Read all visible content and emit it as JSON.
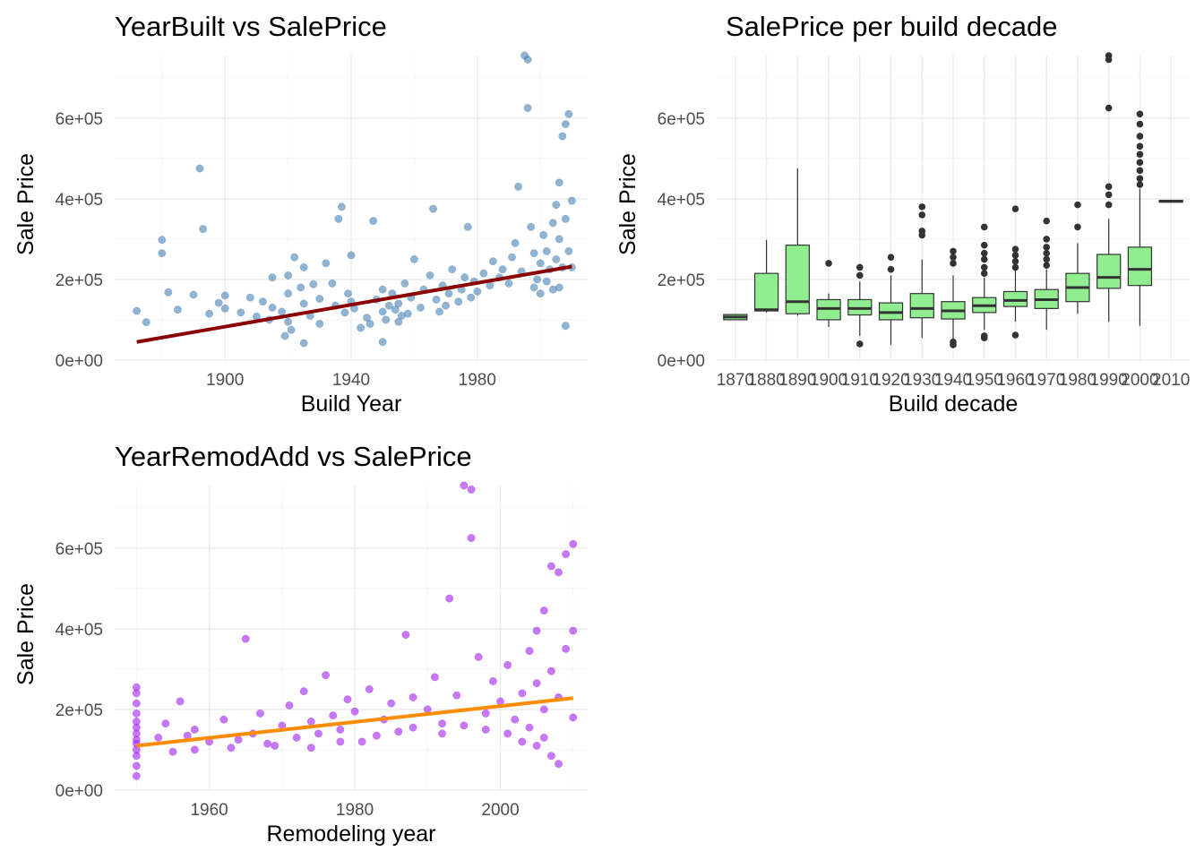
{
  "chart_data": [
    {
      "type": "scatter",
      "title": "YearBuilt vs SalePrice",
      "xlabel": "Build Year",
      "ylabel": "Sale Price",
      "xlim": [
        1865,
        2015
      ],
      "ylim": [
        0,
        755000
      ],
      "x_ticks": [
        1900,
        1940,
        1980
      ],
      "x_tick_labels": [
        "1900",
        "1940",
        "1980"
      ],
      "y_ticks": [
        0,
        200000,
        400000,
        600000
      ],
      "y_tick_labels": [
        "0e+00",
        "2e+05",
        "4e+05",
        "6e+05"
      ],
      "grid": true,
      "point_color": "#4682b4",
      "line_color": "#8b0000",
      "trend_line": {
        "x": [
          1872,
          2010
        ],
        "y": [
          45000,
          232000
        ]
      },
      "points": [
        [
          1872,
          122000
        ],
        [
          1875,
          94000
        ],
        [
          1880,
          298000
        ],
        [
          1880,
          265000
        ],
        [
          1882,
          168000
        ],
        [
          1885,
          125000
        ],
        [
          1890,
          162000
        ],
        [
          1892,
          475000
        ],
        [
          1893,
          325000
        ],
        [
          1895,
          115000
        ],
        [
          1898,
          142000
        ],
        [
          1900,
          128000
        ],
        [
          1900,
          160000
        ],
        [
          1905,
          118000
        ],
        [
          1908,
          155000
        ],
        [
          1910,
          108000
        ],
        [
          1912,
          145000
        ],
        [
          1915,
          205000
        ],
        [
          1915,
          130000
        ],
        [
          1918,
          120000
        ],
        [
          1920,
          165000
        ],
        [
          1920,
          210000
        ],
        [
          1920,
          95000
        ],
        [
          1922,
          255000
        ],
        [
          1924,
          180000
        ],
        [
          1925,
          140000
        ],
        [
          1925,
          230000
        ],
        [
          1927,
          110000
        ],
        [
          1928,
          188000
        ],
        [
          1930,
          152000
        ],
        [
          1930,
          90000
        ],
        [
          1932,
          240000
        ],
        [
          1934,
          190000
        ],
        [
          1935,
          135000
        ],
        [
          1936,
          350000
        ],
        [
          1937,
          380000
        ],
        [
          1938,
          118000
        ],
        [
          1939,
          165000
        ],
        [
          1940,
          260000
        ],
        [
          1940,
          145000
        ],
        [
          1941,
          128000
        ],
        [
          1945,
          105000
        ],
        [
          1947,
          345000
        ],
        [
          1948,
          150000
        ],
        [
          1950,
          175000
        ],
        [
          1950,
          120000
        ],
        [
          1952,
          135000
        ],
        [
          1953,
          165000
        ],
        [
          1955,
          95000
        ],
        [
          1955,
          140000
        ],
        [
          1957,
          190000
        ],
        [
          1959,
          155000
        ],
        [
          1960,
          250000
        ],
        [
          1962,
          130000
        ],
        [
          1963,
          175000
        ],
        [
          1965,
          210000
        ],
        [
          1966,
          375000
        ],
        [
          1967,
          150000
        ],
        [
          1969,
          185000
        ],
        [
          1970,
          135000
        ],
        [
          1971,
          165000
        ],
        [
          1972,
          225000
        ],
        [
          1974,
          145000
        ],
        [
          1975,
          175000
        ],
        [
          1976,
          205000
        ],
        [
          1977,
          330000
        ],
        [
          1978,
          155000
        ],
        [
          1979,
          195000
        ],
        [
          1980,
          170000
        ],
        [
          1982,
          215000
        ],
        [
          1984,
          185000
        ],
        [
          1985,
          245000
        ],
        [
          1987,
          205000
        ],
        [
          1988,
          225000
        ],
        [
          1990,
          190000
        ],
        [
          1991,
          255000
        ],
        [
          1992,
          290000
        ],
        [
          1993,
          430000
        ],
        [
          1994,
          220000
        ],
        [
          1995,
          755000
        ],
        [
          1996,
          745000
        ],
        [
          1996,
          625000
        ],
        [
          1997,
          330000
        ],
        [
          1998,
          265000
        ],
        [
          1999,
          200000
        ],
        [
          2000,
          240000
        ],
        [
          2001,
          310000
        ],
        [
          2002,
          270000
        ],
        [
          2003,
          225000
        ],
        [
          2004,
          340000
        ],
        [
          2005,
          385000
        ],
        [
          2005,
          250000
        ],
        [
          2006,
          440000
        ],
        [
          2006,
          300000
        ],
        [
          2007,
          555000
        ],
        [
          2007,
          230000
        ],
        [
          2008,
          585000
        ],
        [
          2008,
          350000
        ],
        [
          2009,
          610000
        ],
        [
          2009,
          270000
        ],
        [
          2010,
          395000
        ],
        [
          2010,
          230000
        ],
        [
          2006,
          180000
        ],
        [
          2004,
          175000
        ],
        [
          2002,
          195000
        ],
        [
          2000,
          165000
        ],
        [
          1998,
          180000
        ],
        [
          1968,
          120000
        ],
        [
          1958,
          115000
        ],
        [
          1956,
          110000
        ],
        [
          1954,
          125000
        ],
        [
          1951,
          100000
        ],
        [
          1946,
          90000
        ],
        [
          1943,
          80000
        ],
        [
          1921,
          75000
        ],
        [
          1919,
          60000
        ],
        [
          1914,
          100000
        ],
        [
          1950,
          45000
        ],
        [
          1925,
          42000
        ],
        [
          2008,
          85000
        ]
      ]
    },
    {
      "type": "box",
      "title": "SalePrice per build decade",
      "xlabel": "Build decade",
      "ylabel": "Sale Price",
      "ylim": [
        0,
        755000
      ],
      "y_ticks": [
        0,
        200000,
        400000,
        600000
      ],
      "y_tick_labels": [
        "0e+00",
        "2e+05",
        "4e+05",
        "6e+05"
      ],
      "grid": true,
      "box_color": "#90ee90",
      "categories": [
        "1870",
        "1880",
        "1890",
        "1900",
        "1910",
        "1920",
        "1930",
        "1940",
        "1950",
        "1960",
        "1970",
        "1980",
        "1990",
        "2000",
        "2010"
      ],
      "boxes": [
        {
          "min": 100000,
          "q1": 100000,
          "median": 107000,
          "q3": 113000,
          "max": 113000,
          "outliers": []
        },
        {
          "min": 118000,
          "q1": 122000,
          "median": 125000,
          "q3": 215000,
          "max": 298000,
          "outliers": []
        },
        {
          "min": 110000,
          "q1": 115000,
          "median": 145000,
          "q3": 285000,
          "max": 475000,
          "outliers": []
        },
        {
          "min": 82000,
          "q1": 100000,
          "median": 128000,
          "q3": 150000,
          "max": 165000,
          "outliers": [
            240000
          ]
        },
        {
          "min": 60000,
          "q1": 112000,
          "median": 128000,
          "q3": 150000,
          "max": 195000,
          "outliers": [
            40000,
            210000,
            230000
          ]
        },
        {
          "min": 38000,
          "q1": 100000,
          "median": 118000,
          "q3": 142000,
          "max": 210000,
          "outliers": [
            225000,
            255000
          ]
        },
        {
          "min": 55000,
          "q1": 105000,
          "median": 128000,
          "q3": 165000,
          "max": 250000,
          "outliers": [
            310000,
            320000,
            360000,
            380000
          ]
        },
        {
          "min": 52000,
          "q1": 102000,
          "median": 122000,
          "q3": 145000,
          "max": 210000,
          "outliers": [
            38000,
            45000,
            240000,
            255000,
            270000
          ]
        },
        {
          "min": 75000,
          "q1": 118000,
          "median": 135000,
          "q3": 155000,
          "max": 205000,
          "outliers": [
            55000,
            60000,
            215000,
            230000,
            250000,
            265000,
            285000,
            330000
          ]
        },
        {
          "min": 95000,
          "q1": 133000,
          "median": 148000,
          "q3": 170000,
          "max": 225000,
          "outliers": [
            62000,
            230000,
            245000,
            260000,
            275000,
            375000
          ]
        },
        {
          "min": 75000,
          "q1": 128000,
          "median": 150000,
          "q3": 175000,
          "max": 225000,
          "outliers": [
            235000,
            250000,
            265000,
            280000,
            300000,
            345000
          ]
        },
        {
          "min": 115000,
          "q1": 145000,
          "median": 180000,
          "q3": 215000,
          "max": 290000,
          "outliers": [
            330000,
            385000
          ]
        },
        {
          "min": 95000,
          "q1": 178000,
          "median": 205000,
          "q3": 262000,
          "max": 350000,
          "outliers": [
            385000,
            410000,
            430000,
            625000,
            745000,
            755000
          ]
        },
        {
          "min": 85000,
          "q1": 185000,
          "median": 225000,
          "q3": 280000,
          "max": 425000,
          "outliers": [
            435000,
            450000,
            470000,
            490000,
            510000,
            530000,
            555000,
            585000,
            610000
          ]
        },
        {
          "min": 390000,
          "q1": 392000,
          "median": 394000,
          "q3": 396000,
          "max": 398000,
          "outliers": []
        }
      ]
    },
    {
      "type": "scatter",
      "title": "YearRemodAdd vs SalePrice",
      "xlabel": "Remodeling year",
      "ylabel": "Sale Price",
      "xlim": [
        1947,
        2012
      ],
      "ylim": [
        0,
        755000
      ],
      "x_ticks": [
        1960,
        1980,
        2000
      ],
      "x_tick_labels": [
        "1960",
        "1980",
        "2000"
      ],
      "y_ticks": [
        0,
        200000,
        400000,
        600000
      ],
      "y_tick_labels": [
        "0e+00",
        "2e+05",
        "4e+05",
        "6e+05"
      ],
      "grid": true,
      "point_color": "#a020f0",
      "line_color": "#ff8c00",
      "trend_line": {
        "x": [
          1950,
          2010
        ],
        "y": [
          110000,
          228000
        ]
      },
      "points": [
        [
          1950,
          35000
        ],
        [
          1950,
          60000
        ],
        [
          1950,
          85000
        ],
        [
          1950,
          100000
        ],
        [
          1950,
          115000
        ],
        [
          1950,
          125000
        ],
        [
          1950,
          140000
        ],
        [
          1950,
          155000
        ],
        [
          1950,
          170000
        ],
        [
          1950,
          190000
        ],
        [
          1950,
          215000
        ],
        [
          1950,
          240000
        ],
        [
          1950,
          255000
        ],
        [
          1953,
          130000
        ],
        [
          1954,
          165000
        ],
        [
          1955,
          95000
        ],
        [
          1956,
          220000
        ],
        [
          1958,
          150000
        ],
        [
          1960,
          120000
        ],
        [
          1962,
          175000
        ],
        [
          1963,
          105000
        ],
        [
          1965,
          375000
        ],
        [
          1966,
          140000
        ],
        [
          1967,
          190000
        ],
        [
          1968,
          115000
        ],
        [
          1970,
          160000
        ],
        [
          1971,
          210000
        ],
        [
          1972,
          130000
        ],
        [
          1973,
          245000
        ],
        [
          1974,
          170000
        ],
        [
          1975,
          140000
        ],
        [
          1976,
          285000
        ],
        [
          1977,
          185000
        ],
        [
          1978,
          150000
        ],
        [
          1979,
          225000
        ],
        [
          1980,
          195000
        ],
        [
          1981,
          120000
        ],
        [
          1982,
          250000
        ],
        [
          1984,
          175000
        ],
        [
          1985,
          215000
        ],
        [
          1986,
          145000
        ],
        [
          1987,
          385000
        ],
        [
          1988,
          230000
        ],
        [
          1990,
          200000
        ],
        [
          1991,
          280000
        ],
        [
          1992,
          165000
        ],
        [
          1993,
          475000
        ],
        [
          1994,
          235000
        ],
        [
          1995,
          755000
        ],
        [
          1996,
          745000
        ],
        [
          1996,
          625000
        ],
        [
          1997,
          330000
        ],
        [
          1998,
          190000
        ],
        [
          1999,
          270000
        ],
        [
          2000,
          220000
        ],
        [
          2001,
          310000
        ],
        [
          2002,
          175000
        ],
        [
          2003,
          240000
        ],
        [
          2004,
          345000
        ],
        [
          2004,
          155000
        ],
        [
          2005,
          395000
        ],
        [
          2005,
          265000
        ],
        [
          2006,
          445000
        ],
        [
          2006,
          200000
        ],
        [
          2007,
          555000
        ],
        [
          2007,
          295000
        ],
        [
          2008,
          540000
        ],
        [
          2008,
          230000
        ],
        [
          2009,
          585000
        ],
        [
          2009,
          350000
        ],
        [
          2010,
          610000
        ],
        [
          2010,
          395000
        ],
        [
          2010,
          180000
        ],
        [
          2006,
          130000
        ],
        [
          2003,
          120000
        ],
        [
          2001,
          140000
        ],
        [
          1998,
          150000
        ],
        [
          1995,
          160000
        ],
        [
          1992,
          140000
        ],
        [
          1988,
          155000
        ],
        [
          1983,
          135000
        ],
        [
          1978,
          120000
        ],
        [
          1974,
          105000
        ],
        [
          1969,
          110000
        ],
        [
          1964,
          125000
        ],
        [
          1958,
          100000
        ],
        [
          1957,
          135000
        ],
        [
          2007,
          85000
        ],
        [
          2005,
          110000
        ],
        [
          2008,
          65000
        ]
      ]
    }
  ]
}
